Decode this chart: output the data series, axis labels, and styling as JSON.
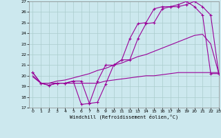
{
  "bg_color": "#cce8ee",
  "grid_color": "#aacccc",
  "line_color": "#990099",
  "xlabel": "Windchill (Refroidissement éolien,°C)",
  "xlim": [
    -0.5,
    23
  ],
  "ylim": [
    17,
    27
  ],
  "yticks": [
    17,
    18,
    19,
    20,
    21,
    22,
    23,
    24,
    25,
    26,
    27
  ],
  "xticks": [
    0,
    1,
    2,
    3,
    4,
    5,
    6,
    7,
    8,
    9,
    10,
    11,
    12,
    13,
    14,
    15,
    16,
    17,
    18,
    19,
    20,
    21,
    22,
    23
  ],
  "line1_x": [
    0,
    1,
    2,
    3,
    4,
    5,
    6,
    7,
    8,
    9,
    10,
    11,
    12,
    13,
    14,
    15,
    16,
    17,
    18,
    19,
    20,
    21,
    22,
    23
  ],
  "line1_y": [
    20.3,
    19.3,
    19.1,
    19.3,
    19.3,
    19.5,
    17.3,
    17.4,
    19.5,
    21.0,
    21.0,
    21.5,
    23.5,
    24.9,
    25.0,
    26.3,
    26.5,
    26.5,
    26.7,
    27.0,
    26.5,
    25.7,
    20.2,
    20.2
  ],
  "line2_x": [
    0,
    1,
    2,
    3,
    4,
    5,
    6,
    7,
    8,
    9,
    10,
    11,
    12,
    13,
    14,
    15,
    16,
    17,
    18,
    19,
    20,
    21,
    22,
    23
  ],
  "line2_y": [
    20.3,
    19.3,
    19.1,
    19.3,
    19.3,
    19.5,
    19.5,
    17.4,
    17.5,
    19.2,
    21.0,
    21.5,
    21.5,
    23.5,
    24.9,
    25.0,
    26.3,
    26.5,
    26.5,
    26.7,
    27.0,
    26.5,
    25.7,
    20.2
  ],
  "line3_x": [
    0,
    1,
    2,
    3,
    4,
    5,
    6,
    7,
    8,
    9,
    10,
    11,
    12,
    13,
    14,
    15,
    16,
    17,
    18,
    19,
    20,
    21,
    22,
    23
  ],
  "line3_y": [
    20.0,
    19.3,
    19.3,
    19.5,
    19.6,
    19.8,
    20.0,
    20.2,
    20.5,
    20.7,
    21.0,
    21.2,
    21.5,
    21.8,
    22.0,
    22.3,
    22.6,
    22.9,
    23.2,
    23.5,
    23.8,
    23.9,
    23.0,
    20.2
  ],
  "line4_x": [
    0,
    1,
    2,
    3,
    4,
    5,
    6,
    7,
    8,
    9,
    10,
    11,
    12,
    13,
    14,
    15,
    16,
    17,
    18,
    19,
    20,
    21,
    22,
    23
  ],
  "line4_y": [
    19.9,
    19.3,
    19.3,
    19.3,
    19.3,
    19.3,
    19.3,
    19.3,
    19.3,
    19.5,
    19.6,
    19.7,
    19.8,
    19.9,
    20.0,
    20.0,
    20.1,
    20.2,
    20.3,
    20.3,
    20.3,
    20.3,
    20.3,
    20.3
  ]
}
